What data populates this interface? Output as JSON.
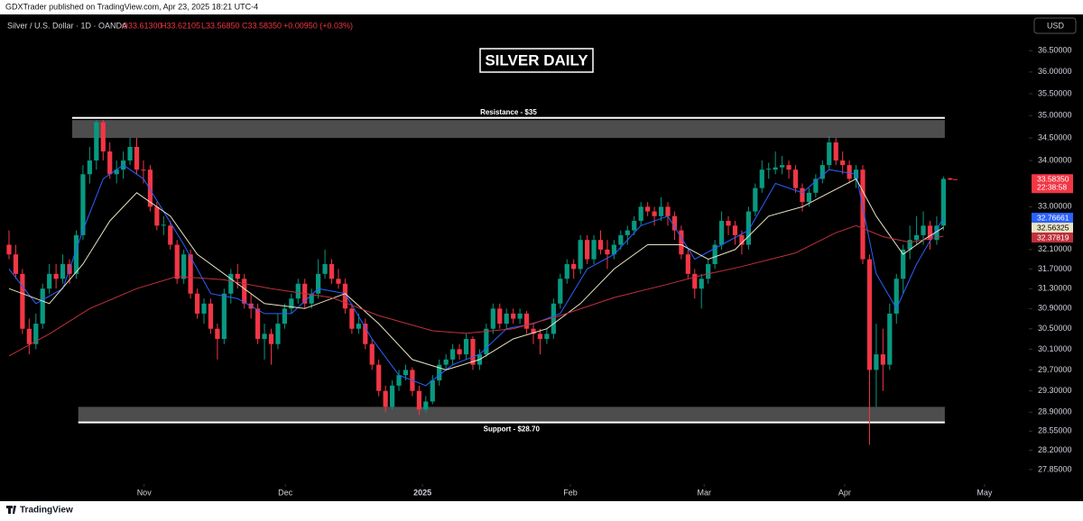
{
  "page_header": "GDXTrader published on TradingView.com, Apr 23, 2025 18:21 UTC-4",
  "footer_brand": "TradingView",
  "chart_data": {
    "type": "candlestick",
    "title": "SILVER DAILY",
    "symbol": "Silver / U.S. Dollar · 1D · OANDA",
    "ohlc_header": {
      "open": "O33.61300",
      "high": "H33.62105",
      "low": "L33.56850",
      "close": "C33.58350",
      "change": "+0.00950 (+0.03%)"
    },
    "currency": "USD",
    "up_color": "#089981",
    "down_color": "#f23645",
    "log_scale": true,
    "grid": false,
    "xlim": [
      -1.34,
      151.7
    ],
    "xticks": [
      {
        "value": 20.1,
        "label": "Nov"
      },
      {
        "value": 41.1,
        "label": "Dec"
      },
      {
        "value": 61.5,
        "label": "2025"
      },
      {
        "value": 83.5,
        "label": "Feb"
      },
      {
        "value": 103.4,
        "label": "Mar"
      },
      {
        "value": 124.3,
        "label": "Apr"
      },
      {
        "value": 145.1,
        "label": "May"
      }
    ],
    "ylim": [
      27.59,
      37.32
    ],
    "yticks": [
      {
        "value": 36.5,
        "label": "36.50000"
      },
      {
        "value": 36,
        "label": "36.00000"
      },
      {
        "value": 35.5,
        "label": "35.50000"
      },
      {
        "value": 35,
        "label": "35.00000"
      },
      {
        "value": 34.5,
        "label": "34.50000"
      },
      {
        "value": 34,
        "label": "34.00000"
      },
      {
        "value": 33,
        "label": "33.00000"
      },
      {
        "value": 32.1,
        "label": "32.10000"
      },
      {
        "value": 31.7,
        "label": "31.70000"
      },
      {
        "value": 31.3,
        "label": "31.30000"
      },
      {
        "value": 30.9,
        "label": "30.90000"
      },
      {
        "value": 30.5,
        "label": "30.50000"
      },
      {
        "value": 30.1,
        "label": "30.10000"
      },
      {
        "value": 29.7,
        "label": "29.70000"
      },
      {
        "value": 29.3,
        "label": "29.30000"
      },
      {
        "value": 28.9,
        "label": "28.90000"
      },
      {
        "value": 28.55,
        "label": "28.55000"
      },
      {
        "value": 28.2,
        "label": "28.20000"
      },
      {
        "value": 27.85,
        "label": "27.85000"
      }
    ],
    "price_label": {
      "value": 33.5835,
      "label": "33.58350",
      "countdown": "22:38:58"
    },
    "ohlc": [
      [
        32.2,
        32.5,
        31.9,
        32.0
      ],
      [
        32.0,
        32.2,
        31.5,
        31.6
      ],
      [
        31.6,
        31.7,
        30.4,
        30.5
      ],
      [
        30.5,
        30.7,
        30.0,
        30.2
      ],
      [
        30.2,
        30.8,
        30.1,
        30.6
      ],
      [
        30.6,
        31.4,
        30.5,
        31.3
      ],
      [
        31.3,
        31.8,
        31.2,
        31.6
      ],
      [
        31.6,
        31.8,
        31.3,
        31.5
      ],
      [
        31.5,
        32.0,
        31.4,
        31.8
      ],
      [
        31.8,
        31.9,
        31.4,
        31.6
      ],
      [
        31.6,
        32.5,
        31.5,
        32.4
      ],
      [
        32.4,
        33.9,
        32.3,
        33.7
      ],
      [
        33.7,
        34.3,
        33.5,
        34.0
      ],
      [
        34.0,
        34.9,
        33.8,
        34.85
      ],
      [
        34.85,
        34.9,
        34.0,
        34.2
      ],
      [
        34.2,
        34.4,
        33.6,
        33.7
      ],
      [
        33.7,
        34.0,
        33.5,
        33.8
      ],
      [
        33.8,
        34.2,
        33.6,
        34.0
      ],
      [
        34.0,
        34.5,
        33.9,
        34.3
      ],
      [
        34.3,
        34.5,
        33.7,
        33.8
      ],
      [
        33.8,
        34.0,
        33.5,
        33.78
      ],
      [
        33.8,
        33.9,
        32.9,
        33.0
      ],
      [
        33.0,
        33.1,
        32.5,
        32.6
      ],
      [
        32.6,
        32.8,
        32.4,
        32.62
      ],
      [
        32.6,
        32.7,
        32.1,
        32.2
      ],
      [
        32.2,
        32.3,
        31.4,
        31.5
      ],
      [
        31.5,
        32.1,
        31.4,
        32.0
      ],
      [
        32.0,
        32.1,
        31.1,
        31.2
      ],
      [
        31.2,
        31.3,
        30.7,
        30.8
      ],
      [
        30.8,
        31.1,
        30.6,
        31.0
      ],
      [
        31.0,
        31.1,
        30.4,
        30.5
      ],
      [
        30.5,
        30.6,
        29.9,
        30.3
      ],
      [
        30.3,
        31.3,
        30.2,
        31.2
      ],
      [
        31.2,
        31.7,
        31.0,
        31.6
      ],
      [
        31.6,
        31.8,
        31.3,
        31.5
      ],
      [
        31.5,
        31.6,
        30.9,
        31.0
      ],
      [
        31.0,
        31.2,
        30.7,
        30.9
      ],
      [
        30.9,
        31.0,
        30.2,
        30.3
      ],
      [
        30.3,
        30.6,
        29.9,
        30.4
      ],
      [
        30.4,
        30.5,
        29.8,
        30.2
      ],
      [
        30.2,
        30.8,
        30.1,
        30.6
      ],
      [
        30.6,
        31.0,
        30.5,
        30.9
      ],
      [
        30.9,
        31.2,
        30.8,
        31.1
      ],
      [
        31.1,
        31.5,
        31.0,
        31.4
      ],
      [
        31.4,
        31.5,
        30.9,
        31.0
      ],
      [
        31.0,
        31.3,
        30.9,
        31.2
      ],
      [
        31.2,
        31.9,
        31.1,
        31.6
      ],
      [
        31.6,
        32.1,
        31.5,
        31.8
      ],
      [
        31.8,
        31.9,
        31.4,
        31.5
      ],
      [
        31.5,
        31.7,
        31.3,
        31.4
      ],
      [
        31.4,
        31.5,
        30.8,
        30.9
      ],
      [
        30.9,
        31.0,
        30.4,
        30.5
      ],
      [
        30.5,
        30.8,
        30.4,
        30.6
      ],
      [
        30.6,
        30.7,
        30.1,
        30.2
      ],
      [
        30.2,
        30.3,
        29.7,
        29.8
      ],
      [
        29.8,
        29.9,
        29.2,
        29.3
      ],
      [
        29.3,
        29.4,
        28.9,
        29.0
      ],
      [
        29.0,
        29.5,
        28.95,
        29.4
      ],
      [
        29.4,
        29.7,
        29.3,
        29.6
      ],
      [
        29.6,
        29.8,
        29.5,
        29.7
      ],
      [
        29.7,
        29.75,
        29.2,
        29.3
      ],
      [
        29.3,
        29.4,
        28.85,
        28.95
      ],
      [
        28.95,
        29.2,
        28.9,
        29.1
      ],
      [
        29.1,
        29.6,
        29.05,
        29.5
      ],
      [
        29.5,
        29.9,
        29.4,
        29.8
      ],
      [
        29.8,
        30.0,
        29.7,
        29.9
      ],
      [
        29.9,
        30.2,
        29.8,
        30.1
      ],
      [
        30.1,
        30.2,
        29.9,
        30.0
      ],
      [
        30.0,
        30.4,
        29.9,
        30.3
      ],
      [
        30.3,
        30.35,
        29.7,
        29.8
      ],
      [
        29.8,
        30.1,
        29.7,
        30.0
      ],
      [
        30.0,
        30.6,
        29.95,
        30.5
      ],
      [
        30.5,
        31.0,
        30.4,
        30.9
      ],
      [
        30.9,
        31.0,
        30.5,
        30.6
      ],
      [
        30.6,
        30.9,
        30.5,
        30.8
      ],
      [
        30.8,
        30.9,
        30.6,
        30.7
      ],
      [
        30.7,
        30.9,
        30.6,
        30.8
      ],
      [
        30.8,
        30.85,
        30.4,
        30.5
      ],
      [
        30.5,
        30.6,
        30.2,
        30.4
      ],
      [
        30.4,
        30.5,
        30.0,
        30.3
      ],
      [
        30.3,
        30.5,
        30.2,
        30.4
      ],
      [
        30.4,
        31.1,
        30.3,
        31.0
      ],
      [
        31.0,
        31.6,
        30.9,
        31.5
      ],
      [
        31.5,
        31.9,
        31.4,
        31.8
      ],
      [
        31.8,
        31.9,
        31.5,
        31.7
      ],
      [
        31.7,
        32.4,
        31.6,
        32.3
      ],
      [
        32.3,
        32.4,
        31.8,
        31.9
      ],
      [
        31.9,
        32.4,
        31.8,
        32.3
      ],
      [
        32.3,
        32.5,
        32.0,
        32.1
      ],
      [
        32.1,
        32.3,
        31.7,
        32.0
      ],
      [
        32.0,
        32.3,
        31.9,
        32.2
      ],
      [
        32.2,
        32.5,
        32.1,
        32.4
      ],
      [
        32.4,
        32.6,
        32.2,
        32.5
      ],
      [
        32.5,
        32.8,
        32.4,
        32.7
      ],
      [
        32.7,
        33.1,
        32.6,
        33.0
      ],
      [
        33.0,
        33.1,
        32.8,
        32.9
      ],
      [
        32.9,
        33.0,
        32.6,
        32.8
      ],
      [
        32.8,
        33.2,
        32.7,
        33.0
      ],
      [
        33.0,
        33.1,
        32.6,
        32.8
      ],
      [
        32.8,
        32.9,
        32.3,
        32.5
      ],
      [
        32.5,
        32.6,
        31.9,
        32.0
      ],
      [
        32.0,
        32.1,
        31.5,
        31.6
      ],
      [
        31.6,
        31.7,
        31.1,
        31.3
      ],
      [
        31.3,
        31.6,
        30.9,
        31.5
      ],
      [
        31.5,
        31.9,
        31.4,
        31.8
      ],
      [
        31.8,
        32.3,
        31.7,
        32.2
      ],
      [
        32.2,
        32.9,
        32.1,
        32.7
      ],
      [
        32.7,
        32.8,
        32.4,
        32.6
      ],
      [
        32.6,
        32.7,
        32.2,
        32.4
      ],
      [
        32.4,
        32.5,
        32.0,
        32.2
      ],
      [
        32.2,
        33.0,
        32.1,
        32.9
      ],
      [
        32.9,
        33.5,
        32.8,
        33.4
      ],
      [
        33.4,
        34.0,
        33.3,
        33.8
      ],
      [
        33.8,
        33.95,
        33.6,
        33.82
      ],
      [
        33.8,
        34.2,
        33.7,
        33.85
      ],
      [
        33.85,
        34.1,
        33.7,
        33.9
      ],
      [
        33.9,
        34.0,
        33.6,
        33.8
      ],
      [
        33.8,
        33.9,
        33.3,
        33.4
      ],
      [
        33.4,
        33.5,
        32.9,
        33.1
      ],
      [
        33.1,
        33.4,
        33.0,
        33.3
      ],
      [
        33.3,
        33.7,
        33.2,
        33.6
      ],
      [
        33.6,
        34.0,
        33.5,
        33.9
      ],
      [
        33.9,
        34.55,
        33.8,
        34.4
      ],
      [
        34.4,
        34.5,
        33.9,
        34.0
      ],
      [
        34.0,
        34.2,
        33.7,
        33.9
      ],
      [
        33.9,
        34.0,
        33.5,
        33.6
      ],
      [
        33.6,
        33.9,
        33.4,
        33.8
      ],
      [
        33.8,
        33.9,
        31.8,
        31.9
      ],
      [
        31.9,
        32.0,
        28.3,
        29.7
      ],
      [
        29.7,
        30.6,
        29.0,
        30.0
      ],
      [
        30.0,
        30.5,
        29.3,
        29.8
      ],
      [
        29.8,
        31.0,
        29.7,
        30.8
      ],
      [
        30.8,
        31.6,
        30.6,
        31.5
      ],
      [
        31.5,
        32.2,
        31.2,
        32.1
      ],
      [
        32.1,
        32.6,
        31.9,
        32.3
      ],
      [
        32.3,
        32.8,
        32.2,
        32.4
      ],
      [
        32.4,
        32.9,
        32.2,
        32.6
      ],
      [
        32.6,
        32.7,
        32.1,
        32.3
      ],
      [
        32.3,
        32.8,
        32.2,
        32.6
      ],
      [
        32.6,
        33.65,
        32.5,
        33.6
      ],
      [
        33.613,
        33.62105,
        33.5685,
        33.5835
      ]
    ],
    "series": [
      {
        "color": "#2962ff",
        "x": [
          0,
          4,
          8,
          11,
          14,
          17,
          20,
          23,
          26,
          30,
          34,
          38,
          42,
          46,
          50,
          54,
          58,
          62,
          66,
          70,
          74,
          78,
          82,
          86,
          90,
          94,
          98,
          102,
          106,
          110,
          114,
          118,
          122,
          126,
          129,
          132,
          135,
          139
        ],
        "values": [
          31.7,
          31.0,
          31.3,
          32.5,
          33.6,
          33.9,
          33.6,
          32.9,
          32.2,
          31.2,
          31.1,
          30.8,
          30.8,
          31.3,
          31.2,
          30.3,
          29.6,
          29.4,
          29.8,
          30.0,
          30.5,
          30.6,
          30.8,
          31.7,
          32.0,
          32.6,
          32.8,
          31.9,
          32.2,
          32.5,
          33.5,
          33.3,
          33.8,
          33.7,
          31.6,
          30.9,
          31.8,
          32.76661
        ]
      },
      {
        "color": "#e9e2c4",
        "x": [
          0,
          6,
          11,
          15,
          19,
          24,
          28,
          33,
          38,
          44,
          50,
          55,
          60,
          65,
          70,
          75,
          80,
          85,
          90,
          95,
          100,
          104,
          108,
          113,
          118,
          122,
          126,
          129,
          133,
          136,
          139
        ],
        "values": [
          31.3,
          31.0,
          31.8,
          32.7,
          33.3,
          32.8,
          32.0,
          31.5,
          31.0,
          30.9,
          31.2,
          30.6,
          29.9,
          29.7,
          29.9,
          30.3,
          30.5,
          31.0,
          31.7,
          32.2,
          32.2,
          31.9,
          32.1,
          32.8,
          33.0,
          33.3,
          33.6,
          32.8,
          32.0,
          32.3,
          32.56325
        ]
      },
      {
        "color": "#c0313c",
        "x": [
          0,
          6,
          12,
          19,
          25,
          32,
          39,
          48,
          55,
          63,
          68,
          75,
          82,
          90,
          98,
          103,
          109,
          117,
          123,
          126,
          130,
          134,
          139
        ],
        "values": [
          29.97,
          30.4,
          30.9,
          31.3,
          31.55,
          31.48,
          31.3,
          31.12,
          30.76,
          30.46,
          30.41,
          30.5,
          30.76,
          31.12,
          31.39,
          31.57,
          31.75,
          32.03,
          32.45,
          32.6,
          32.37,
          32.25,
          32.37819
        ]
      }
    ],
    "levels": [
      {
        "label": "Resistance - $35",
        "line": 34.95,
        "zone": [
          34.5,
          34.9
        ],
        "x": [
          9.4,
          139.2
        ]
      },
      {
        "label": "Support - $28.70",
        "line": 28.71,
        "zone": [
          28.72,
          29.0
        ],
        "x": [
          10.3,
          139.2
        ]
      }
    ]
  }
}
